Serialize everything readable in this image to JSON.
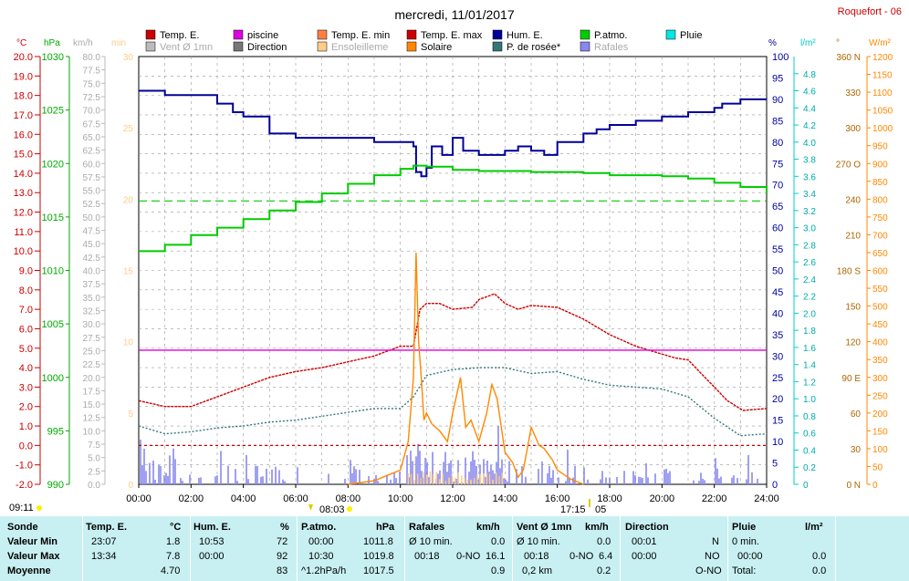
{
  "page": {
    "title": "mercredi, 11/01/2017",
    "station": "Roquefort - 06"
  },
  "legend": {
    "row1": [
      {
        "label": "Temp. E.",
        "color": "#cc0000",
        "faded": false
      },
      {
        "label": "piscine",
        "color": "#dd00dd",
        "faded": false
      },
      {
        "label": "Temp. E. min",
        "color": "#ff7f40",
        "faded": false
      },
      {
        "label": "Temp. E. max",
        "color": "#cc0000",
        "faded": false
      },
      {
        "label": "Hum. E.",
        "color": "#000099",
        "faded": false
      },
      {
        "label": "P.atmo.",
        "color": "#00cc00",
        "faded": false
      },
      {
        "label": "Pluie",
        "color": "#00e5e5",
        "faded": false
      }
    ],
    "row2": [
      {
        "label": "Vent Ø 1mn",
        "color": "#bbbbbb",
        "faded": true
      },
      {
        "label": "Direction",
        "color": "#777777",
        "faded": false
      },
      {
        "label": "Ensoleilleme",
        "color": "#ffcc88",
        "faded": true
      },
      {
        "label": "Solaire",
        "color": "#ff8800",
        "faded": false
      },
      {
        "label": "P. de rosée*",
        "color": "#337777",
        "faded": false
      },
      {
        "label": "Rafales",
        "color": "#8888ee",
        "faded": true
      }
    ]
  },
  "axes_units": {
    "temp": "°C",
    "press": "hPa",
    "wind": "km/h",
    "sun": "min",
    "hum": "%",
    "rain": "l/m²",
    "dir": "°",
    "solar": "W/m²"
  },
  "axes_ticks": {
    "temp": [
      "20.0",
      "19.0",
      "18.0",
      "17.0",
      "16.0",
      "15.0",
      "14.0",
      "13.0",
      "12.0",
      "11.0",
      "10.0",
      "9.0",
      "8.0",
      "7.0",
      "6.0",
      "5.0",
      "4.0",
      "3.0",
      "2.0",
      "1.0",
      "0.0",
      "-1.0",
      "-2.0"
    ],
    "press": [
      "1030",
      "1025",
      "1020",
      "1015",
      "1010",
      "1005",
      "1000",
      "995",
      "990"
    ],
    "wind": [
      "80.0",
      "77.5",
      "75.0",
      "72.5",
      "70.0",
      "67.5",
      "65.0",
      "62.5",
      "60.0",
      "57.5",
      "55.0",
      "52.5",
      "50.0",
      "47.5",
      "45.0",
      "42.5",
      "40.0",
      "37.5",
      "35.0",
      "32.5",
      "30.0",
      "27.5",
      "25.0",
      "22.5",
      "20.0",
      "17.5",
      "15.0",
      "12.5",
      "10.0",
      "7.5",
      "5.0",
      "2.5",
      "0.0"
    ],
    "sun": [
      "30",
      "25",
      "20",
      "15",
      "10",
      "5",
      "0"
    ],
    "hum": [
      "100",
      "95",
      "90",
      "85",
      "80",
      "75",
      "70",
      "65",
      "60",
      "55",
      "50",
      "45",
      "40",
      "35",
      "30",
      "25",
      "20",
      "15",
      "10",
      "5",
      "0"
    ],
    "rain": [
      "4.8",
      "4.6",
      "4.4",
      "4.2",
      "4.0",
      "3.8",
      "3.6",
      "3.4",
      "3.2",
      "3.0",
      "2.8",
      "2.6",
      "2.4",
      "2.2",
      "2.0",
      "1.8",
      "1.6",
      "1.4",
      "1.2",
      "1.0",
      "0.8",
      "0.6",
      "0.4",
      "0.2",
      "0"
    ],
    "dir": [
      "360 N",
      "330",
      "300",
      "270 O",
      "240",
      "210",
      "180 S",
      "150",
      "120",
      "90 E",
      "60",
      "30",
      "0 N"
    ],
    "solar": [
      "1200",
      "1150",
      "1100",
      "1050",
      "1000",
      "950",
      "900",
      "850",
      "800",
      "750",
      "700",
      "650",
      "600",
      "550",
      "500",
      "450",
      "400",
      "350",
      "300",
      "250",
      "200",
      "150",
      "100",
      "50",
      "0"
    ],
    "time": [
      "00:00",
      "02:00",
      "04:00",
      "06:00",
      "08:00",
      "10:00",
      "12:00",
      "14:00",
      "16:00",
      "18:00",
      "20:00",
      "22:00",
      "24:00"
    ]
  },
  "sun_times": {
    "sunrise_label": "09:11",
    "marker1": "08:03",
    "marker2": "17:15",
    "marker2_tail": "05"
  },
  "chart_data": {
    "type": "line",
    "x_unit": "hours",
    "xlim": [
      0,
      24
    ],
    "series": [
      {
        "name": "Temp. E.",
        "unit": "°C",
        "color": "#cc0000",
        "x": [
          0,
          1,
          2,
          3,
          4,
          5,
          6,
          7,
          8,
          9,
          10,
          10.2,
          10.5,
          10.75,
          11,
          11.5,
          12,
          12.75,
          13,
          13.6,
          14,
          14.5,
          15,
          16,
          17,
          18,
          19,
          20,
          20.5,
          21,
          21.5,
          22,
          22.5,
          23.1,
          24
        ],
        "y": [
          2.3,
          2.0,
          2.0,
          2.5,
          3.0,
          3.5,
          3.8,
          4.0,
          4.3,
          4.6,
          5.1,
          5.1,
          5.1,
          7.0,
          7.3,
          7.3,
          7.0,
          7.1,
          7.5,
          7.8,
          7.3,
          7.0,
          7.2,
          7.1,
          6.5,
          5.7,
          5.1,
          4.7,
          4.5,
          4.4,
          3.7,
          3.0,
          2.3,
          1.8,
          1.9
        ]
      },
      {
        "name": "piscine",
        "unit": "°C",
        "color": "#dd00dd",
        "x": [
          0,
          24
        ],
        "y": [
          4.9,
          4.9
        ]
      },
      {
        "name": "Hum. E.",
        "unit": "%",
        "color": "#000099",
        "x": [
          0,
          0.5,
          1,
          2,
          2.5,
          3,
          3.2,
          3.6,
          4,
          5,
          5.5,
          6,
          7,
          8,
          9,
          9.5,
          10,
          10.5,
          10.6,
          10.8,
          11,
          11.2,
          11.6,
          12,
          12.4,
          12.8,
          13,
          13.5,
          14,
          14.5,
          15,
          15.5,
          16,
          16.5,
          17,
          17.5,
          18,
          19,
          19.5,
          20,
          20.5,
          21,
          22,
          22.3,
          23,
          24
        ],
        "y": [
          92,
          92,
          91,
          91,
          91,
          89,
          89,
          87,
          86,
          82,
          82,
          81,
          81,
          81,
          80,
          80,
          80,
          79,
          73,
          72,
          74,
          79,
          77,
          81,
          78,
          78,
          77,
          77,
          78,
          79,
          78,
          77,
          80,
          80,
          82,
          83,
          84,
          85,
          85,
          86,
          86,
          87,
          88,
          89,
          90,
          90
        ]
      },
      {
        "name": "P.atmo.",
        "unit": "hPa",
        "color": "#00cc00",
        "x": [
          0,
          1,
          2,
          3,
          4,
          5,
          6,
          7,
          8,
          9,
          10,
          10.5,
          11,
          12,
          13,
          14,
          15,
          16,
          17,
          18,
          19,
          20,
          21,
          22,
          23,
          24
        ],
        "y": [
          1011.8,
          1012.4,
          1013.3,
          1014.0,
          1014.8,
          1015.6,
          1016.4,
          1017.2,
          1018.1,
          1018.9,
          1019.5,
          1019.8,
          1019.7,
          1019.4,
          1019.3,
          1019.3,
          1019.2,
          1019.2,
          1019.1,
          1018.9,
          1018.9,
          1018.8,
          1018.6,
          1018.2,
          1017.8,
          1017.2
        ]
      },
      {
        "name": "P. de rosée*",
        "unit": "°C",
        "color": "#337777",
        "x": [
          0,
          1,
          2,
          3,
          4,
          5,
          6,
          7,
          8,
          9,
          10,
          10.5,
          11,
          12,
          13,
          14,
          15,
          16,
          17,
          18,
          19,
          20,
          21,
          22,
          23,
          24
        ],
        "y": [
          1.0,
          0.6,
          0.7,
          0.9,
          1.0,
          1.2,
          1.3,
          1.5,
          1.7,
          1.9,
          1.9,
          2.5,
          3.6,
          3.9,
          4.0,
          4.0,
          3.7,
          3.8,
          3.4,
          3.1,
          3.0,
          2.9,
          2.5,
          1.4,
          0.5,
          0.6
        ]
      },
      {
        "name": "Solaire",
        "unit": "W/m²",
        "color": "#ff8800",
        "x": [
          8,
          9,
          9.5,
          10,
          10.3,
          10.5,
          10.6,
          10.7,
          10.8,
          10.9,
          11,
          11.2,
          11.5,
          11.8,
          12,
          12.3,
          12.5,
          12.7,
          13,
          13.3,
          13.5,
          13.7,
          14,
          14.3,
          14.5,
          14.7,
          15,
          15.3,
          15.5,
          15.8,
          16,
          16.3,
          16.5,
          17
        ],
        "y": [
          0,
          10,
          25,
          40,
          120,
          300,
          650,
          400,
          300,
          180,
          200,
          170,
          150,
          120,
          200,
          300,
          160,
          180,
          120,
          200,
          280,
          240,
          90,
          60,
          20,
          40,
          160,
          110,
          100,
          70,
          40,
          25,
          15,
          0
        ]
      }
    ],
    "bars": {
      "name": "Rafales",
      "unit": "km/h",
      "color": "#8888ee"
    },
    "dashed_lines": [
      {
        "unit": "hPa",
        "value": 1016.5,
        "color": "#00cc00"
      },
      {
        "unit": "°C",
        "value": 0.0,
        "color": "#cc0000"
      }
    ]
  },
  "summary": {
    "headers": {
      "sonde": "Sonde",
      "temp": "Temp. E.",
      "temp_u": "°C",
      "hum": "Hum. E.",
      "hum_u": "%",
      "press": "P.atmo.",
      "press_u": "hPa",
      "raf": "Rafales",
      "raf_u": "km/h",
      "vent": "Vent Ø 1mn",
      "vent_u": "km/h",
      "dir": "Direction",
      "pluie": "Pluie",
      "pluie_u": "l/m²"
    },
    "min": {
      "label": "Valeur Min",
      "temp_t": "23:07",
      "temp_v": "1.8",
      "hum_t": "10:53",
      "hum_v": "72",
      "press_t": "00:00",
      "press_v": "1011.8",
      "raf_a": "Ø 10 min.",
      "raf_v": "0.0",
      "vent_a": "Ø 10 min.",
      "vent_v": "0.0",
      "dir_t": "00:01",
      "dir_v": "N",
      "pluie_a": "0 min.",
      "pluie_v": ""
    },
    "max": {
      "label": "Valeur Max",
      "temp_t": "13:34",
      "temp_v": "7.8",
      "hum_t": "00:00",
      "hum_v": "92",
      "press_t": "10:30",
      "press_v": "1019.8",
      "raf_t": "00:18",
      "raf_d": "0-NO",
      "raf_v": "16.1",
      "vent_t": "00:18",
      "vent_d": "0-NO",
      "vent_v": "6.4",
      "dir_t": "00:00",
      "dir_v": "NO",
      "pluie_t": "00:00",
      "pluie_v": "0.0"
    },
    "avg": {
      "label": "Moyenne",
      "temp_v": "4.70",
      "hum_v": "83",
      "press_a": "^1.2hPa/h",
      "press_v": "1017.5",
      "raf_v": "0.9",
      "vent_a": "0,2 km",
      "vent_v": "0.2",
      "dir_v": "O-NO",
      "pluie_a": "Total:",
      "pluie_v": "0.0"
    }
  }
}
